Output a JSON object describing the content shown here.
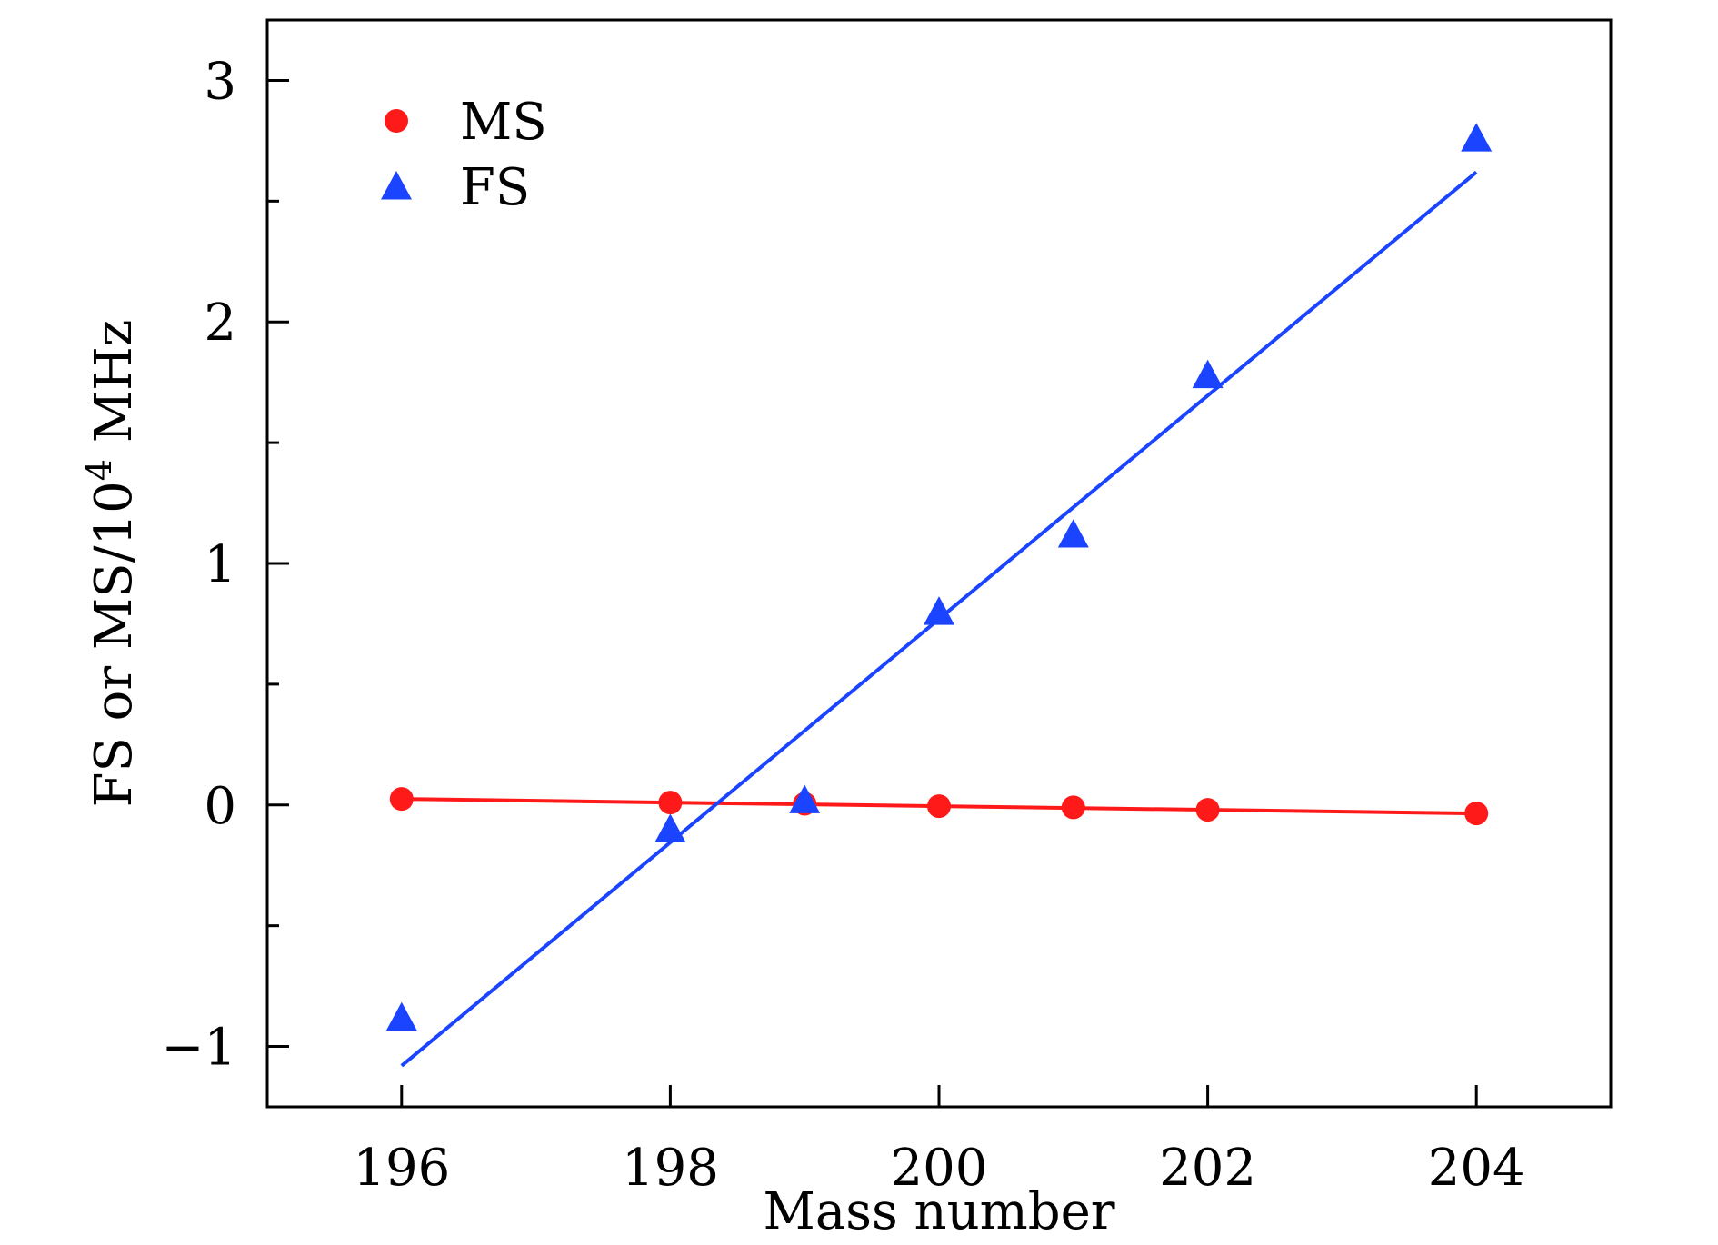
{
  "chart_data": {
    "type": "scatter",
    "xlabel": "Mass number",
    "ylabel": {
      "pre": "FS or MS/10",
      "sup": "4",
      "post": " MHz"
    },
    "xlim": [
      195,
      205
    ],
    "ylim": [
      -1.25,
      3.25
    ],
    "xticks": [
      196,
      198,
      200,
      202,
      204
    ],
    "xtick_labels": [
      "196",
      "198",
      "200",
      "202",
      "204"
    ],
    "yticks_major": [
      -1,
      0,
      1,
      2,
      3
    ],
    "ytick_labels": [
      "−1",
      "0",
      "1",
      "2",
      "3"
    ],
    "yticks_minor": [
      -0.5,
      0.5,
      1.5,
      2.5
    ],
    "legend_position": "top-left",
    "series": [
      {
        "name": "MS",
        "marker": "circle",
        "color": "#ff1a1a",
        "x": [
          196,
          198,
          199,
          200,
          201,
          202,
          204
        ],
        "values": [
          0.025,
          0.01,
          0.005,
          -0.005,
          -0.01,
          -0.02,
          -0.035
        ],
        "fit": {
          "x": [
            196,
            204
          ],
          "y": [
            0.025,
            -0.035
          ]
        }
      },
      {
        "name": "FS",
        "marker": "triangle",
        "color": "#1a44ff",
        "x": [
          196,
          198,
          199,
          200,
          201,
          202,
          204
        ],
        "values": [
          -0.88,
          -0.1,
          0.02,
          0.8,
          1.12,
          1.78,
          2.76
        ],
        "fit": {
          "x": [
            196,
            204
          ],
          "y": [
            -1.08,
            2.62
          ]
        }
      }
    ]
  }
}
